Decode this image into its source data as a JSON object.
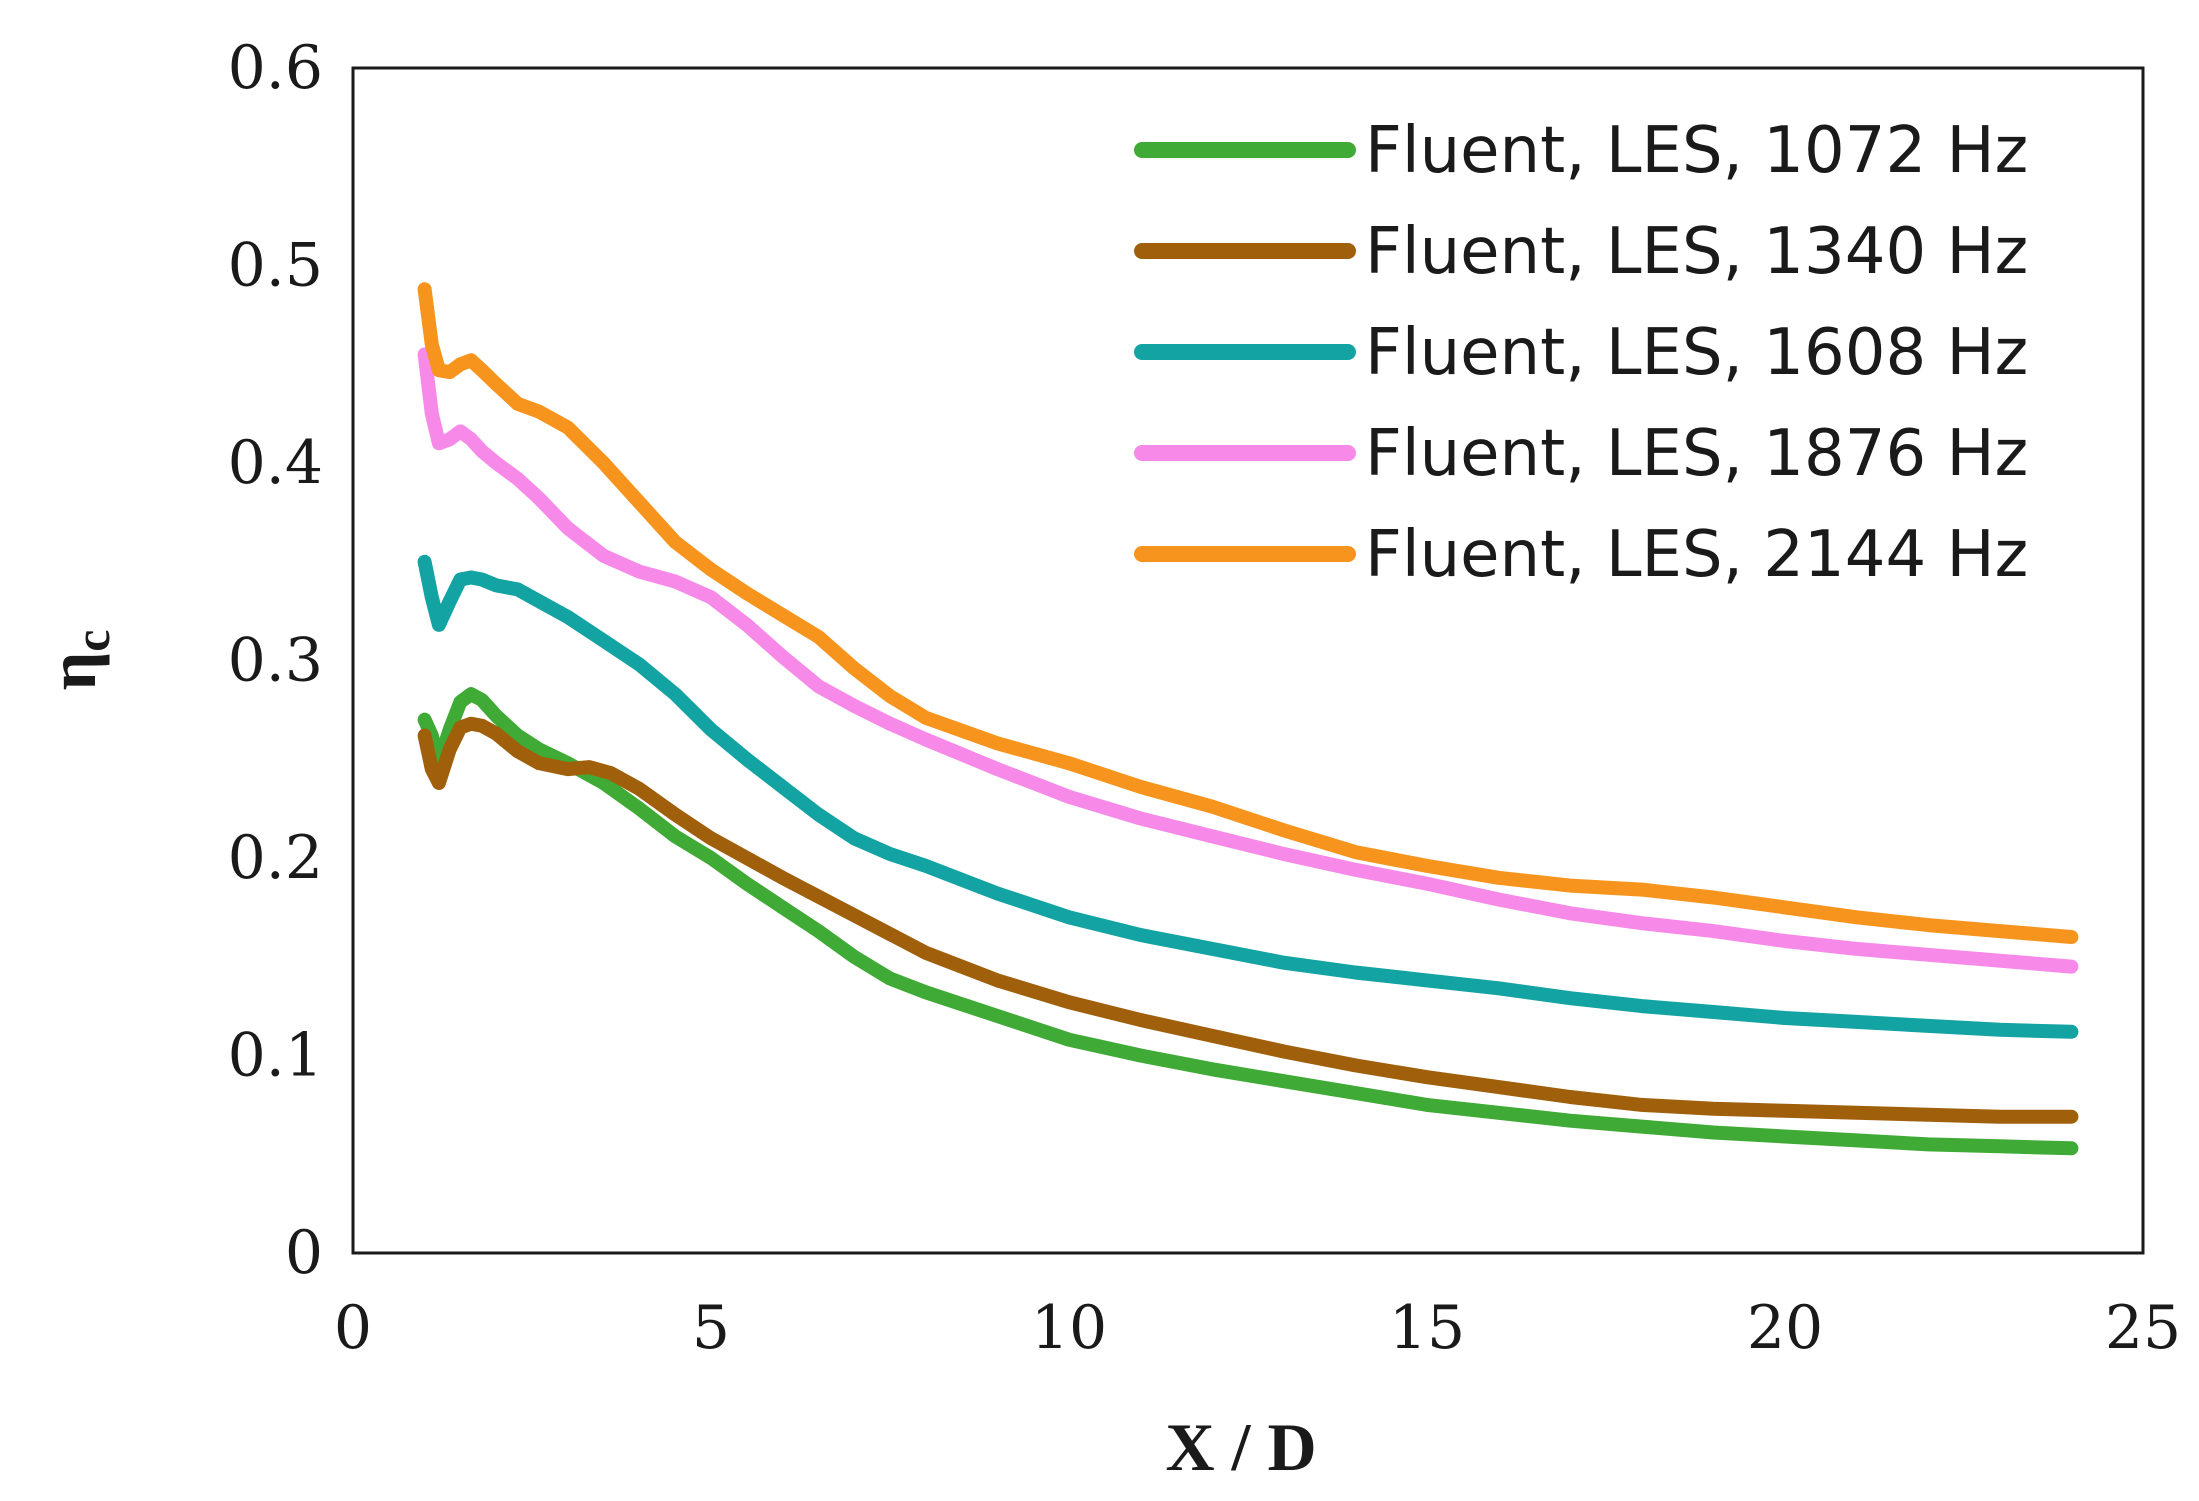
{
  "chart_data": {
    "type": "line",
    "title": "",
    "xlabel": "X / D",
    "ylabel": "η",
    "ylabel_sub": "c",
    "xlim": [
      0,
      25
    ],
    "ylim": [
      0,
      0.6
    ],
    "xticks": [
      "0",
      "5",
      "10",
      "15",
      "20",
      "25"
    ],
    "yticks": [
      "0",
      "0.1",
      "0.2",
      "0.3",
      "0.4",
      "0.5",
      "0.6"
    ],
    "grid": false,
    "legend_position": "top-right",
    "series": [
      {
        "name": "Fluent, LES, 1072 Hz",
        "color": "#3faa35",
        "x": [
          1.0,
          1.1,
          1.2,
          1.35,
          1.5,
          1.65,
          1.8,
          2.0,
          2.3,
          2.6,
          3.0,
          3.5,
          4.0,
          4.5,
          5.0,
          5.5,
          6.0,
          6.5,
          7.0,
          7.5,
          8.0,
          9.0,
          10.0,
          11.0,
          12.0,
          13.0,
          14.0,
          15.0,
          16.0,
          17.0,
          18.0,
          19.0,
          20.0,
          21.0,
          22.0,
          23.0,
          24.0
        ],
        "y": [
          0.27,
          0.262,
          0.248,
          0.265,
          0.279,
          0.283,
          0.28,
          0.272,
          0.262,
          0.255,
          0.248,
          0.238,
          0.225,
          0.211,
          0.2,
          0.187,
          0.175,
          0.163,
          0.15,
          0.139,
          0.132,
          0.12,
          0.108,
          0.1,
          0.093,
          0.087,
          0.081,
          0.075,
          0.071,
          0.067,
          0.064,
          0.061,
          0.059,
          0.057,
          0.055,
          0.054,
          0.053
        ]
      },
      {
        "name": "Fluent, LES, 1340 Hz",
        "color": "#a05f0a",
        "x": [
          1.0,
          1.1,
          1.2,
          1.35,
          1.5,
          1.65,
          1.8,
          2.0,
          2.3,
          2.6,
          3.0,
          3.3,
          3.6,
          4.0,
          4.5,
          5.0,
          5.5,
          6.0,
          7.0,
          8.0,
          9.0,
          10.0,
          11.0,
          12.0,
          13.0,
          14.0,
          15.0,
          16.0,
          17.0,
          18.0,
          19.0,
          20.0,
          21.0,
          22.0,
          23.0,
          24.0
        ],
        "y": [
          0.262,
          0.245,
          0.238,
          0.255,
          0.266,
          0.268,
          0.267,
          0.263,
          0.254,
          0.248,
          0.245,
          0.246,
          0.243,
          0.235,
          0.222,
          0.21,
          0.2,
          0.19,
          0.171,
          0.152,
          0.138,
          0.127,
          0.118,
          0.11,
          0.102,
          0.095,
          0.089,
          0.084,
          0.079,
          0.075,
          0.073,
          0.072,
          0.071,
          0.07,
          0.069,
          0.069
        ]
      },
      {
        "name": "Fluent, LES, 1608 Hz",
        "color": "#13a3a3",
        "x": [
          1.0,
          1.1,
          1.2,
          1.35,
          1.5,
          1.65,
          1.8,
          2.0,
          2.3,
          2.6,
          3.0,
          3.5,
          4.0,
          4.5,
          5.0,
          5.5,
          6.0,
          6.5,
          7.0,
          7.5,
          8.0,
          9.0,
          10.0,
          11.0,
          12.0,
          13.0,
          14.0,
          15.0,
          16.0,
          17.0,
          18.0,
          19.0,
          20.0,
          21.0,
          22.0,
          23.0,
          24.0
        ],
        "y": [
          0.35,
          0.332,
          0.318,
          0.33,
          0.341,
          0.342,
          0.341,
          0.338,
          0.336,
          0.33,
          0.322,
          0.31,
          0.298,
          0.283,
          0.265,
          0.25,
          0.236,
          0.222,
          0.21,
          0.202,
          0.196,
          0.182,
          0.17,
          0.161,
          0.154,
          0.147,
          0.142,
          0.138,
          0.134,
          0.129,
          0.125,
          0.122,
          0.119,
          0.117,
          0.115,
          0.113,
          0.112
        ]
      },
      {
        "name": "Fluent, LES, 1876 Hz",
        "color": "#f78ae8",
        "x": [
          1.0,
          1.1,
          1.2,
          1.35,
          1.5,
          1.65,
          1.8,
          2.0,
          2.3,
          2.6,
          3.0,
          3.5,
          4.0,
          4.5,
          5.0,
          5.5,
          6.0,
          6.5,
          7.0,
          7.5,
          8.0,
          9.0,
          10.0,
          11.0,
          12.0,
          13.0,
          14.0,
          15.0,
          16.0,
          17.0,
          18.0,
          19.0,
          20.0,
          21.0,
          22.0,
          23.0,
          24.0
        ],
        "y": [
          0.455,
          0.425,
          0.41,
          0.412,
          0.416,
          0.412,
          0.406,
          0.4,
          0.392,
          0.382,
          0.367,
          0.353,
          0.345,
          0.34,
          0.332,
          0.318,
          0.302,
          0.287,
          0.277,
          0.268,
          0.26,
          0.245,
          0.231,
          0.22,
          0.211,
          0.202,
          0.194,
          0.187,
          0.179,
          0.172,
          0.167,
          0.163,
          0.158,
          0.154,
          0.151,
          0.148,
          0.145
        ]
      },
      {
        "name": "Fluent, LES, 2144 Hz",
        "color": "#f7941d",
        "x": [
          1.0,
          1.1,
          1.2,
          1.35,
          1.5,
          1.65,
          1.8,
          2.0,
          2.3,
          2.6,
          3.0,
          3.5,
          4.0,
          4.5,
          5.0,
          5.5,
          6.0,
          6.5,
          7.0,
          7.5,
          8.0,
          9.0,
          10.0,
          11.0,
          12.0,
          13.0,
          14.0,
          15.0,
          16.0,
          17.0,
          18.0,
          19.0,
          20.0,
          21.0,
          22.0,
          23.0,
          24.0
        ],
        "y": [
          0.488,
          0.46,
          0.447,
          0.446,
          0.45,
          0.452,
          0.447,
          0.44,
          0.43,
          0.426,
          0.418,
          0.4,
          0.38,
          0.36,
          0.346,
          0.334,
          0.323,
          0.312,
          0.296,
          0.282,
          0.271,
          0.258,
          0.248,
          0.236,
          0.226,
          0.214,
          0.203,
          0.196,
          0.19,
          0.186,
          0.184,
          0.18,
          0.175,
          0.17,
          0.166,
          0.163,
          0.16
        ]
      }
    ]
  }
}
